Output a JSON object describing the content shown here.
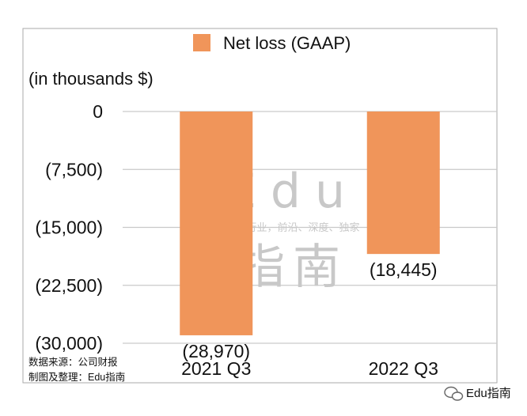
{
  "chart_data": {
    "type": "bar",
    "title": "",
    "unit_label": "(in thousands $)",
    "categories": [
      "2021 Q3",
      "2022 Q3"
    ],
    "series": [
      {
        "name": "Net loss (GAAP)",
        "values": [
          -28970,
          -18445
        ],
        "color": "#f0955a"
      }
    ],
    "data_labels": [
      "(28,970)",
      "(18,445)"
    ],
    "y_ticks": [
      0,
      -7500,
      -15000,
      -22500,
      -30000
    ],
    "y_tick_labels": [
      "0",
      "(7,500)",
      "(15,000)",
      "(22,500)",
      "(30,000)"
    ],
    "ylim": [
      -30000,
      0
    ],
    "grid": true,
    "legend_position": "top"
  },
  "source_note": {
    "line1": "数据来源：公司财报",
    "line2": "制图及整理：Edu指南"
  },
  "watermark": {
    "latin": "Edu",
    "cjk": "指南",
    "tagline": "教育行业，前沿、深度、独家"
  },
  "footer_brand": {
    "icon": "wechat-icon",
    "text": "Edu指南"
  }
}
